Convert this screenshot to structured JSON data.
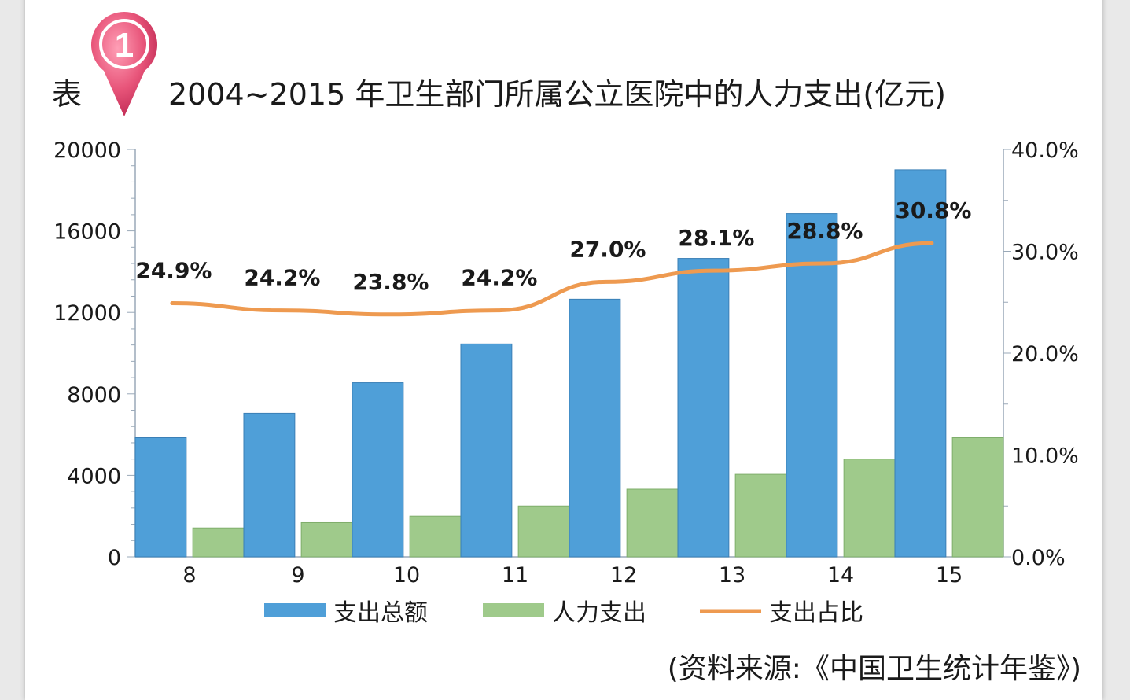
{
  "header": {
    "prefix": "表",
    "badge_number": "1",
    "title": "2004~2015 年卫生部门所属公立医院中的人力支出(亿元)"
  },
  "source_note": "(资料来源:《中国卫生统计年鉴》)",
  "colors": {
    "total": "#4f9fd8",
    "labor": "#9fca8b",
    "ratio": "#ee9a50",
    "badge": "#e8557a"
  },
  "chart_data": {
    "type": "bar",
    "categories": [
      "8",
      "9",
      "10",
      "11",
      "12",
      "13",
      "14",
      "15"
    ],
    "series": [
      {
        "name": "支出总额",
        "type": "bar",
        "axis": "left",
        "values": [
          5850,
          7050,
          8550,
          10450,
          12650,
          14650,
          16850,
          19000
        ]
      },
      {
        "name": "人力支出",
        "type": "bar",
        "axis": "left",
        "values": [
          1420,
          1680,
          2000,
          2500,
          3320,
          4050,
          4800,
          5850
        ]
      },
      {
        "name": "支出占比",
        "type": "line",
        "axis": "right",
        "values": [
          24.9,
          24.2,
          23.8,
          24.2,
          27.0,
          28.1,
          28.8,
          30.8
        ],
        "labels": [
          "24.9%",
          "24.2%",
          "23.8%",
          "24.2%",
          "27.0%",
          "28.1%",
          "28.8%",
          "30.8%"
        ]
      }
    ],
    "ylim": [
      0,
      20000
    ],
    "yticks": [
      "0",
      "4000",
      "8000",
      "12000",
      "16000",
      "20000"
    ],
    "y2lim": [
      0,
      40
    ],
    "y2ticks": [
      "0.0%",
      "10.0%",
      "20.0%",
      "30.0%",
      "40.0%"
    ],
    "legend": "bottom",
    "grid": false
  }
}
